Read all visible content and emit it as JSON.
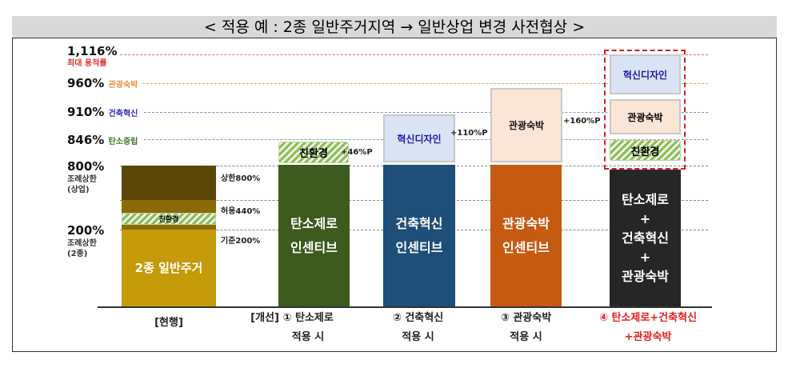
{
  "title": "< 적용 예 : 2종 일반주거지역 → 일반상업 변경 사전협상 >",
  "levels": [
    {
      "value": "1,116%",
      "note": "최대 용적률",
      "color": "#e03030"
    },
    {
      "value": "960%",
      "note": "관광숙박",
      "color": "#e8913c"
    },
    {
      "value": "910%",
      "note": "건축혁신",
      "color": "#2b2bbf"
    },
    {
      "value": "846%",
      "note": "탄소중립",
      "color": "#3a7a1f"
    },
    {
      "value": "800%",
      "note": "조례상한\n(상업)",
      "color": "#333333"
    },
    {
      "value": "200%",
      "note": "조례상한\n(2종)",
      "color": "#333333"
    }
  ],
  "bars": [
    {
      "label": "2종 일반주거",
      "segments": [
        "친환경"
      ],
      "annotations": [
        "상한800%",
        "허용440%",
        "기준200%"
      ],
      "caption": [
        "[현행]",
        ""
      ],
      "color": "#c49a08"
    },
    {
      "label": "탄소제로\n인센티브",
      "bonus": "친환경",
      "bonus_pct": "+46%P",
      "caption": [
        "[개선] ① 탄소제로",
        "적용 시"
      ],
      "color": "#3d5a1f"
    },
    {
      "label": "건축혁신\n인센티브",
      "bonus": "혁신디자인",
      "bonus_pct": "+110%P",
      "caption": [
        "② 건축혁신",
        "적용 시"
      ],
      "color": "#1f4e79"
    },
    {
      "label": "관광숙박\n인센티브",
      "bonus": "관광숙박",
      "bonus_pct": "+160%P",
      "caption": [
        "③ 관광숙박",
        "적용 시"
      ],
      "color": "#c55a11"
    },
    {
      "label": "탄소제로\n+\n건축혁신\n+\n관광숙박",
      "bonuses": [
        "혁신디자인",
        "관광숙박",
        "친환경"
      ],
      "caption": [
        "④ 탄소제로+건축혁신",
        "+관광숙박"
      ],
      "color": "#262626"
    }
  ]
}
